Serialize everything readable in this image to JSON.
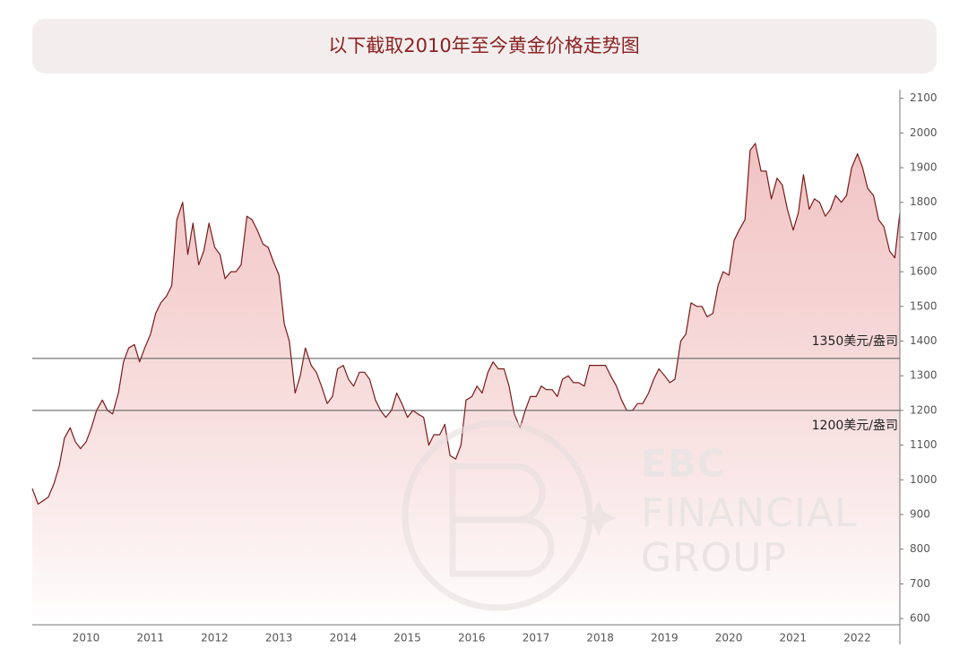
{
  "chart_data": {
    "type": "area",
    "title": "以下截取2010年至今黄金价格走势图",
    "watermark": [
      "EBC",
      "FINANCIAL",
      "GROUP"
    ],
    "x": [
      2009.33,
      2009.42,
      2009.5,
      2009.58,
      2009.67,
      2009.75,
      2009.83,
      2009.92,
      2010,
      2010.08,
      2010.17,
      2010.25,
      2010.33,
      2010.42,
      2010.5,
      2010.58,
      2010.67,
      2010.75,
      2010.83,
      2010.92,
      2011,
      2011.08,
      2011.17,
      2011.25,
      2011.33,
      2011.42,
      2011.5,
      2011.58,
      2011.67,
      2011.75,
      2011.83,
      2011.92,
      2012,
      2012.08,
      2012.17,
      2012.25,
      2012.33,
      2012.42,
      2012.5,
      2012.58,
      2012.67,
      2012.75,
      2012.83,
      2012.92,
      2013,
      2013.08,
      2013.17,
      2013.25,
      2013.33,
      2013.42,
      2013.5,
      2013.58,
      2013.67,
      2013.75,
      2013.83,
      2013.92,
      2014,
      2014.08,
      2014.17,
      2014.25,
      2014.33,
      2014.42,
      2014.5,
      2014.58,
      2014.67,
      2014.75,
      2014.83,
      2014.92,
      2015,
      2015.08,
      2015.17,
      2015.25,
      2015.33,
      2015.42,
      2015.5,
      2015.58,
      2015.67,
      2015.75,
      2015.83,
      2015.92,
      2016,
      2016.08,
      2016.17,
      2016.25,
      2016.33,
      2016.42,
      2016.5,
      2016.58,
      2016.67,
      2016.75,
      2016.83,
      2016.92,
      2017,
      2017.08,
      2017.17,
      2017.25,
      2017.33,
      2017.42,
      2017.5,
      2017.58,
      2017.67,
      2017.75,
      2017.83,
      2017.92,
      2018,
      2018.08,
      2018.17,
      2018.25,
      2018.33,
      2018.42,
      2018.5,
      2018.58,
      2018.67,
      2018.75,
      2018.83,
      2018.92,
      2019,
      2019.08,
      2019.17,
      2019.25,
      2019.33,
      2019.42,
      2019.5,
      2019.58,
      2019.67,
      2019.75,
      2019.83,
      2019.92,
      2020,
      2020.08,
      2020.17,
      2020.25,
      2020.33,
      2020.42,
      2020.5,
      2020.58,
      2020.67,
      2020.75,
      2020.83,
      2020.92,
      2021,
      2021.08,
      2021.17,
      2021.25,
      2021.33,
      2021.42,
      2021.5,
      2021.58,
      2021.67,
      2021.75,
      2021.83,
      2021.92,
      2022,
      2022.08,
      2022.17,
      2022.25,
      2022.33,
      2022.42,
      2022.5,
      2022.58,
      2022.67,
      2022.75,
      2022.83
    ],
    "series": [
      {
        "color": "#7a1a1a",
        "fill": "#f2c6c6",
        "values": [
          975,
          930,
          940,
          950,
          990,
          1040,
          1120,
          1150,
          1110,
          1090,
          1110,
          1150,
          1200,
          1230,
          1200,
          1190,
          1250,
          1340,
          1380,
          1390,
          1340,
          1380,
          1420,
          1480,
          1510,
          1530,
          1560,
          1750,
          1800,
          1650,
          1740,
          1620,
          1660,
          1740,
          1670,
          1650,
          1580,
          1600,
          1600,
          1620,
          1760,
          1750,
          1720,
          1680,
          1670,
          1630,
          1590,
          1450,
          1400,
          1250,
          1300,
          1380,
          1330,
          1310,
          1270,
          1220,
          1240,
          1320,
          1330,
          1290,
          1270,
          1310,
          1310,
          1290,
          1230,
          1200,
          1180,
          1200,
          1250,
          1220,
          1180,
          1200,
          1190,
          1180,
          1100,
          1130,
          1130,
          1160,
          1070,
          1060,
          1100,
          1230,
          1240,
          1270,
          1250,
          1310,
          1340,
          1320,
          1320,
          1270,
          1190,
          1150,
          1200,
          1240,
          1240,
          1270,
          1260,
          1260,
          1240,
          1290,
          1300,
          1280,
          1280,
          1270,
          1330,
          1330,
          1330,
          1330,
          1300,
          1270,
          1230,
          1200,
          1200,
          1220,
          1220,
          1250,
          1290,
          1320,
          1300,
          1280,
          1290,
          1400,
          1420,
          1510,
          1500,
          1500,
          1470,
          1480,
          1560,
          1600,
          1590,
          1690,
          1720,
          1750,
          1950,
          1970,
          1890,
          1890,
          1810,
          1870,
          1850,
          1780,
          1720,
          1770,
          1880,
          1780,
          1810,
          1800,
          1760,
          1780,
          1820,
          1800,
          1820,
          1900,
          1940,
          1900,
          1840,
          1820,
          1750,
          1730,
          1660,
          1640,
          1770
        ]
      }
    ],
    "xlim": [
      2009.33,
      2022.83
    ],
    "xticks": [
      2010,
      2011,
      2012,
      2013,
      2014,
      2015,
      2016,
      2017,
      2018,
      2019,
      2020,
      2021,
      2022
    ],
    "ylim": [
      582,
      2125
    ],
    "yticks": [
      600,
      700,
      800,
      900,
      1000,
      1100,
      1200,
      1300,
      1400,
      1500,
      1600,
      1700,
      1800,
      1900,
      2000,
      2100
    ],
    "y_axis_side": "right",
    "hlines": [
      {
        "value": 1350,
        "label": "1350美元/盎司",
        "label_position": "above"
      },
      {
        "value": 1200,
        "label": "1200美元/盎司",
        "label_position": "below"
      }
    ]
  }
}
